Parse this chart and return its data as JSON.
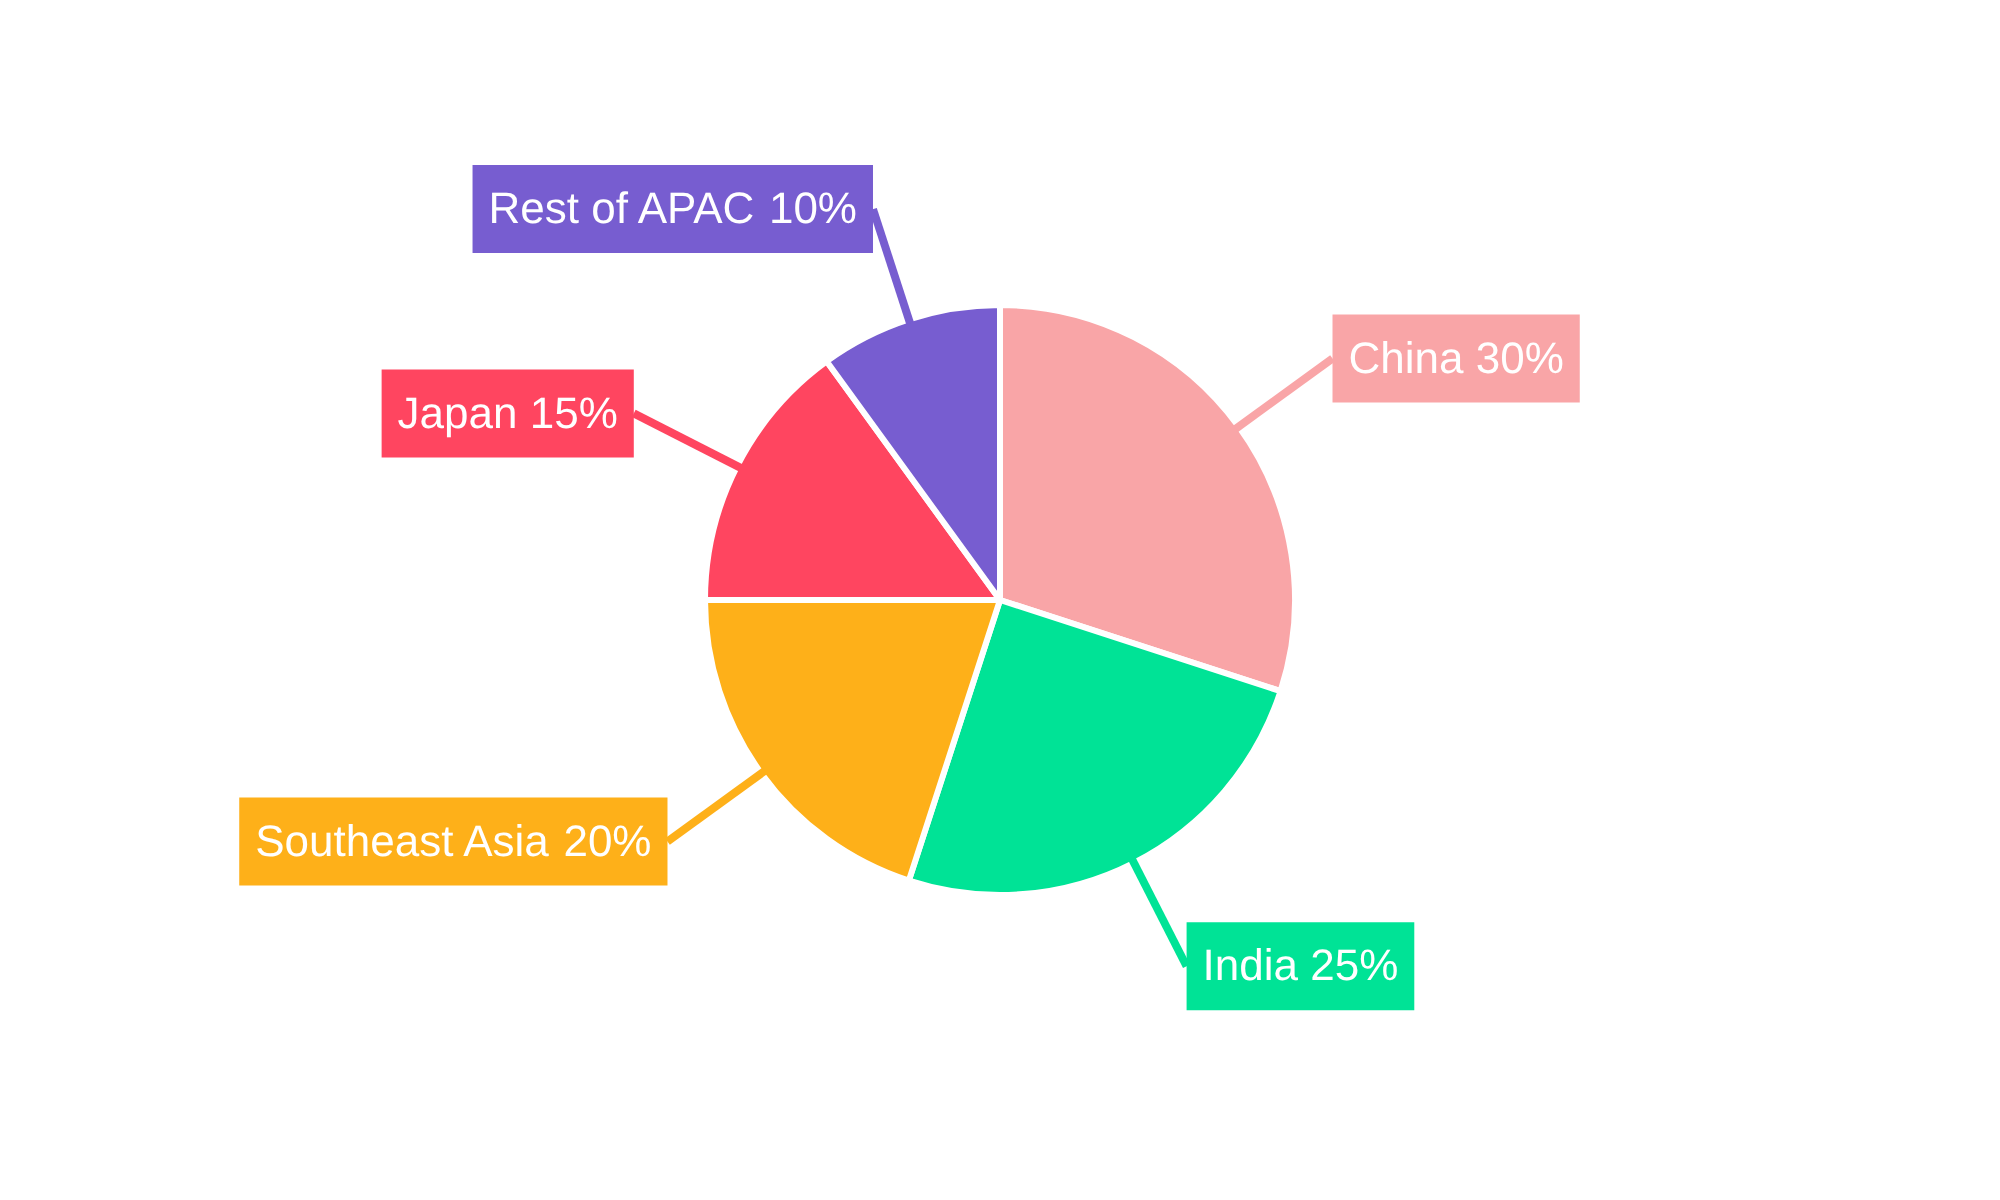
{
  "chart_data": {
    "type": "pie",
    "categories": [
      "China",
      "India",
      "Southeast Asia",
      "Japan",
      "Rest of APAC"
    ],
    "values": [
      30,
      25,
      20,
      15,
      10
    ],
    "colors": [
      "#f9a5a7",
      "#00e396",
      "#feb019",
      "#ff4560",
      "#775dd0"
    ],
    "value_labels": [
      "30%",
      "25%",
      "20%",
      "15%",
      "10%"
    ],
    "legend": false
  }
}
